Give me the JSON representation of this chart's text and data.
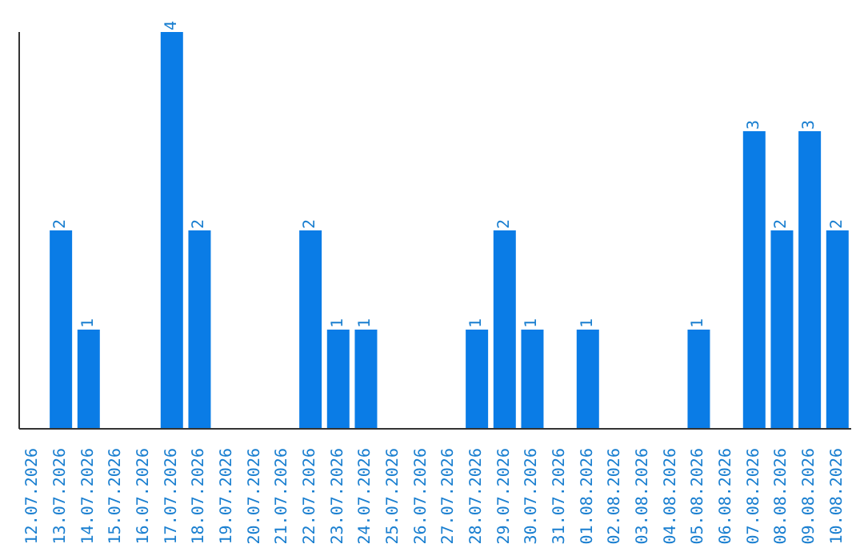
{
  "chart_data": {
    "type": "bar",
    "categories": [
      "12.07.2026",
      "13.07.2026",
      "14.07.2026",
      "15.07.2026",
      "16.07.2026",
      "17.07.2026",
      "18.07.2026",
      "19.07.2026",
      "20.07.2026",
      "21.07.2026",
      "22.07.2026",
      "23.07.2026",
      "24.07.2026",
      "25.07.2026",
      "26.07.2026",
      "27.07.2026",
      "28.07.2026",
      "29.07.2026",
      "30.07.2026",
      "31.07.2026",
      "01.08.2026",
      "02.08.2026",
      "03.08.2026",
      "04.08.2026",
      "05.08.2026",
      "06.08.2026",
      "07.08.2026",
      "08.08.2026",
      "09.08.2026",
      "10.08.2026"
    ],
    "values": [
      0,
      2,
      1,
      0,
      0,
      4,
      2,
      0,
      0,
      0,
      2,
      1,
      1,
      0,
      0,
      0,
      1,
      2,
      1,
      0,
      1,
      0,
      0,
      0,
      1,
      0,
      3,
      2,
      3,
      2
    ],
    "value_labels": [
      null,
      "2",
      "1",
      null,
      null,
      "4",
      "2",
      null,
      null,
      null,
      "2",
      "1",
      "1",
      null,
      null,
      null,
      "1",
      "2",
      "1",
      null,
      "1",
      null,
      null,
      null,
      "1",
      null,
      "3",
      "2",
      "3",
      "2"
    ],
    "color": "#0a7ce6",
    "tick_labels": "x",
    "grid": false,
    "legend": false
  }
}
